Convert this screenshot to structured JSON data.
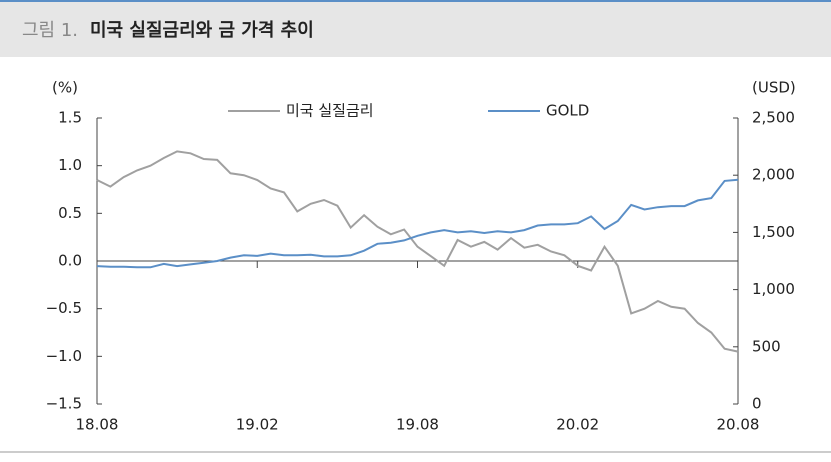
{
  "chart_data": {
    "type": "line",
    "figure_label": "그림 1.",
    "title": "미국 실질금리와 금 가격 추이",
    "y_unit": "(%)",
    "y2_unit": "(USD)",
    "x": [
      0,
      0.5,
      1,
      1.5,
      2,
      2.5,
      3,
      3.5,
      4,
      4.5,
      5,
      5.5,
      6,
      6.5,
      7,
      7.5,
      8,
      8.5,
      9,
      9.5,
      10,
      10.5,
      11,
      11.5,
      12,
      12.5,
      13,
      13.5,
      14,
      14.5,
      15,
      15.5,
      16,
      16.5,
      17,
      17.5,
      18,
      18.5,
      19,
      19.5,
      20,
      20.5,
      21,
      21.5,
      22,
      22.5,
      23,
      23.5,
      24
    ],
    "xlim": [
      0,
      24
    ],
    "xticks": [
      {
        "value": 0,
        "label": "18.08"
      },
      {
        "value": 6,
        "label": "19.02"
      },
      {
        "value": 12,
        "label": "19.08"
      },
      {
        "value": 18,
        "label": "20.02"
      },
      {
        "value": 24,
        "label": "20.08"
      }
    ],
    "ylim": [
      -1.5,
      1.5
    ],
    "yticks": [
      {
        "value": -1.5,
        "label": "−1.5"
      },
      {
        "value": -1,
        "label": "−1.0"
      },
      {
        "value": -0.5,
        "label": "−0.5"
      },
      {
        "value": 0,
        "label": "0.0"
      },
      {
        "value": 0.5,
        "label": "0.5"
      },
      {
        "value": 1,
        "label": "1.0"
      },
      {
        "value": 1.5,
        "label": "1.5"
      }
    ],
    "y2lim": [
      0,
      2500
    ],
    "y2ticks": [
      0,
      500,
      {
        "value": 1000,
        "label": "1,000"
      },
      {
        "value": 1500,
        "label": "1,500"
      },
      {
        "value": 2000,
        "label": "2,000"
      },
      {
        "value": 2500,
        "label": "2,500"
      }
    ],
    "series": [
      {
        "name": "미국 실질금리",
        "color": "#a0a0a0",
        "values": [
          0.85,
          0.78,
          0.88,
          0.95,
          1.0,
          1.08,
          1.15,
          1.13,
          1.07,
          1.06,
          0.92,
          0.9,
          0.85,
          0.76,
          0.72,
          0.52,
          0.6,
          0.64,
          0.58,
          0.35,
          0.48,
          0.36,
          0.28,
          0.33,
          0.15,
          0.05,
          -0.05,
          0.22,
          0.15,
          0.2,
          0.12,
          0.24,
          0.14,
          0.17,
          0.1,
          0.06,
          -0.05,
          -0.1,
          0.15,
          -0.05,
          -0.55,
          -0.5,
          -0.42,
          -0.48,
          -0.5,
          -0.65,
          -0.75,
          -0.92,
          -0.95
        ]
      },
      {
        "name": "GOLD",
        "color": "#5b8fc7",
        "axis": "y2",
        "values": [
          1205,
          1200,
          1200,
          1195,
          1195,
          1225,
          1205,
          1220,
          1235,
          1250,
          1280,
          1300,
          1295,
          1315,
          1300,
          1300,
          1305,
          1290,
          1290,
          1300,
          1340,
          1400,
          1410,
          1430,
          1470,
          1500,
          1520,
          1500,
          1510,
          1495,
          1510,
          1500,
          1520,
          1560,
          1570,
          1570,
          1580,
          1640,
          1530,
          1600,
          1740,
          1700,
          1720,
          1730,
          1730,
          1780,
          1800,
          1950,
          1960
        ]
      }
    ]
  }
}
